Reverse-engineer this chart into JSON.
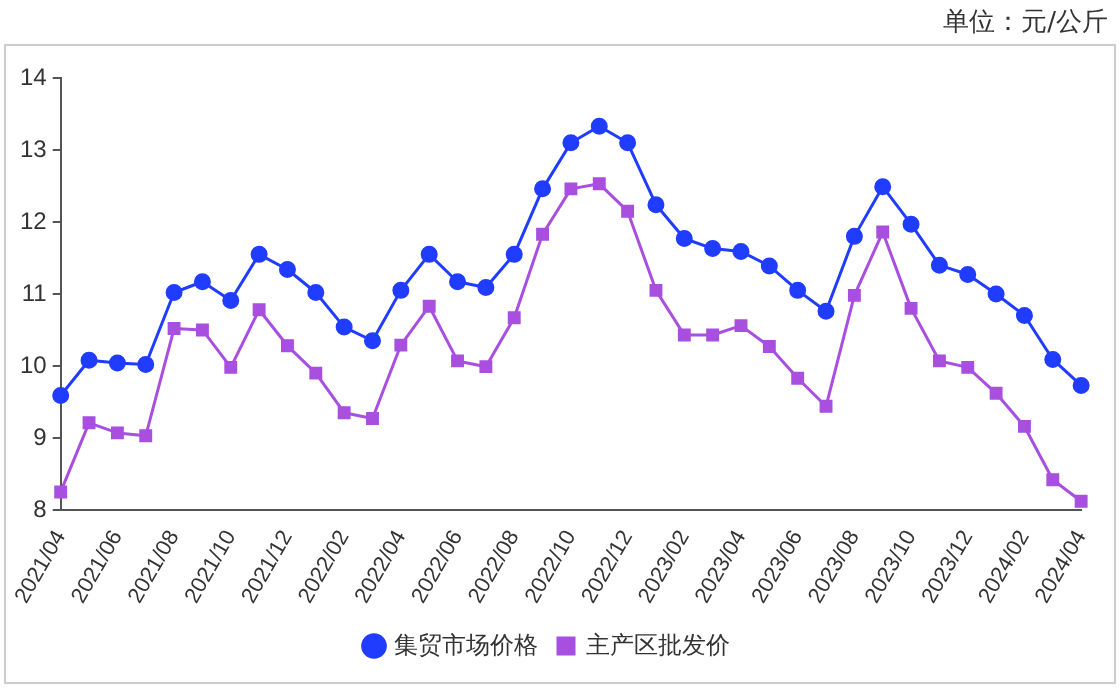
{
  "chart_data": {
    "type": "line",
    "annotations": [
      "单位：元/公斤"
    ],
    "categories": [
      "2021/04",
      null,
      "2021/06",
      null,
      "2021/08",
      null,
      "2021/10",
      null,
      "2021/12",
      null,
      "2022/02",
      null,
      "2022/04",
      null,
      "2022/06",
      null,
      "2022/08",
      null,
      "2022/10",
      null,
      "2022/12",
      null,
      "2023/02",
      null,
      "2023/04",
      null,
      "2023/06",
      null,
      "2023/08",
      null,
      "2023/10",
      null,
      "2023/12",
      null,
      "2024/02",
      null,
      "2024/04"
    ],
    "series": [
      {
        "name": "集贸市场价格",
        "color": "#1f3cff",
        "marker": "circle",
        "values": [
          9.59,
          10.08,
          10.04,
          10.02,
          11.02,
          11.17,
          10.91,
          11.55,
          11.34,
          11.02,
          10.54,
          10.35,
          11.05,
          11.55,
          11.17,
          11.09,
          11.55,
          12.46,
          13.1,
          13.33,
          13.1,
          12.24,
          11.77,
          11.63,
          11.59,
          11.39,
          11.05,
          10.76,
          11.8,
          12.49,
          11.97,
          11.4,
          11.27,
          11.0,
          10.7,
          10.09,
          9.73
        ]
      },
      {
        "name": "主产区批发价",
        "color": "#a84fe0",
        "marker": "square",
        "values": [
          8.25,
          9.21,
          9.07,
          9.03,
          10.52,
          10.5,
          9.98,
          10.78,
          10.28,
          9.9,
          9.35,
          9.27,
          10.29,
          10.83,
          10.07,
          9.99,
          10.67,
          11.83,
          12.46,
          12.53,
          12.15,
          11.05,
          10.43,
          10.43,
          10.56,
          10.27,
          9.83,
          9.44,
          10.98,
          11.86,
          10.8,
          10.07,
          9.98,
          9.62,
          9.16,
          8.42,
          8.12
        ]
      }
    ],
    "ylim": [
      8,
      14
    ],
    "yticks": [
      8,
      9,
      10,
      11,
      12,
      13,
      14
    ],
    "grid": false,
    "legend": "bottom"
  }
}
